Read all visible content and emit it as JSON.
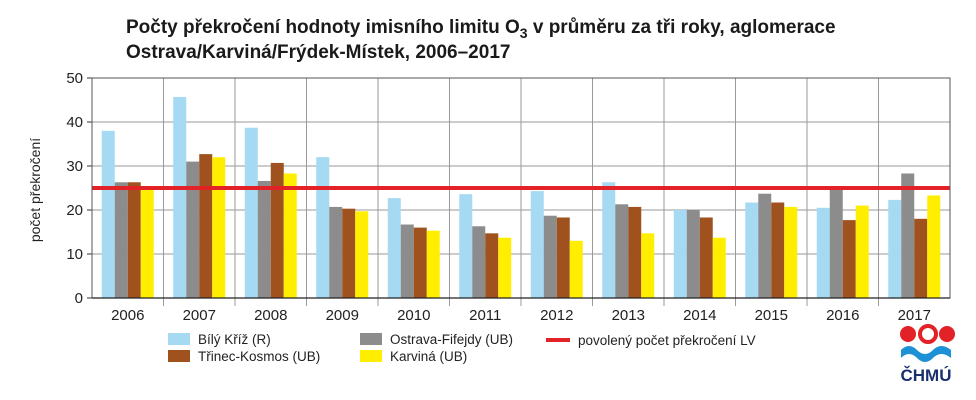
{
  "chart_data": {
    "type": "bar",
    "title_line1_prefix": "Počty překročení hodnoty imisního limitu O",
    "title_subscript": "3",
    "title_line1_suffix": " v průměru za tři roky, aglomerace",
    "title_line2": "Ostrava/Karviná/Frýdek-Místek, 2006–2017",
    "ylabel": "počet překročení",
    "xlabel": "",
    "ylim": [
      0,
      50
    ],
    "yticks": [
      "0",
      "10",
      "20",
      "30",
      "40",
      "50"
    ],
    "categories": [
      "2006",
      "2007",
      "2008",
      "2009",
      "2010",
      "2011",
      "2012",
      "2013",
      "2014",
      "2015",
      "2016",
      "2017"
    ],
    "series": [
      {
        "name": "Bílý Kříž (R)",
        "color": "#a6d9f2",
        "values": [
          38,
          45.7,
          38.7,
          32,
          22.7,
          23.6,
          24.3,
          26.3,
          20,
          21.7,
          20.5,
          22.3
        ]
      },
      {
        "name": "Ostrava-Fifejdy (UB)",
        "color": "#8c8c8c",
        "values": [
          26.3,
          31,
          26.6,
          20.7,
          16.7,
          16.3,
          18.7,
          21.3,
          20,
          23.7,
          25,
          28.3
        ]
      },
      {
        "name": "Třinec-Kosmos (UB)",
        "color": "#a0521e",
        "values": [
          26.3,
          32.7,
          30.7,
          20.3,
          16,
          14.7,
          18.3,
          20.7,
          18.3,
          21.7,
          17.7,
          18
        ]
      },
      {
        "name": "Karviná (UB)",
        "color": "#ffee00",
        "values": [
          25.3,
          32,
          28.3,
          19.7,
          15.3,
          13.7,
          13,
          14.7,
          13.7,
          20.7,
          21,
          23.3
        ]
      }
    ],
    "reference_line": {
      "name": "povolený počet překročení LV",
      "value": 25,
      "color": "#e32228"
    },
    "grid": true,
    "legend_position": "bottom"
  },
  "logo": {
    "text": "ČHMÚ",
    "red": "#e32228",
    "blue": "#1e90d6"
  }
}
